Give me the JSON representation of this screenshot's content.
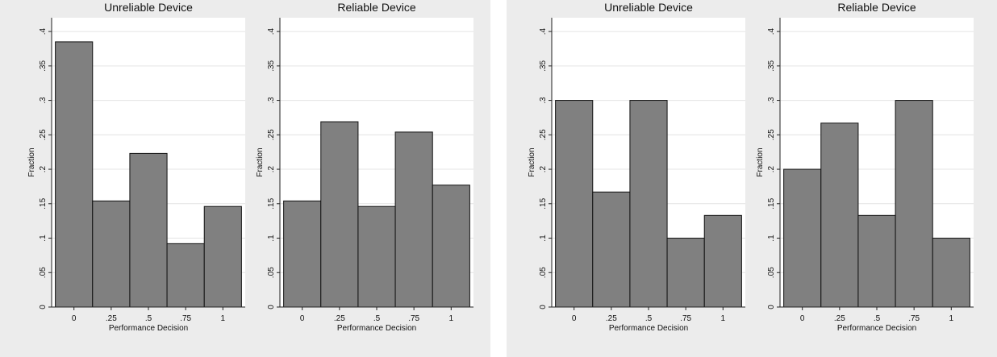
{
  "chart_data": [
    {
      "type": "bar",
      "title": "Unreliable Device",
      "xlabel": "Performance Decision",
      "ylabel": "Fraction",
      "categories": [
        "0",
        ".25",
        ".5",
        ".75",
        "1"
      ],
      "x": [
        0,
        0.25,
        0.5,
        0.75,
        1
      ],
      "values": [
        0.385,
        0.154,
        0.223,
        0.092,
        0.146
      ],
      "yticks": [
        "0",
        ".05",
        ".1",
        ".15",
        ".2",
        ".25",
        ".3",
        ".35",
        ".4"
      ],
      "ylim": [
        0,
        0.42
      ],
      "xlim": [
        -0.15,
        1.15
      ],
      "grid": true,
      "bar_color": "#808080"
    },
    {
      "type": "bar",
      "title": "Reliable Device",
      "xlabel": "Performance Decision",
      "ylabel": "Fraction",
      "categories": [
        "0",
        ".25",
        ".5",
        ".75",
        "1"
      ],
      "x": [
        0,
        0.25,
        0.5,
        0.75,
        1
      ],
      "values": [
        0.154,
        0.269,
        0.146,
        0.254,
        0.177
      ],
      "yticks": [
        "0",
        ".05",
        ".1",
        ".15",
        ".2",
        ".25",
        ".3",
        ".35",
        ".4"
      ],
      "ylim": [
        0,
        0.42
      ],
      "xlim": [
        -0.15,
        1.15
      ],
      "grid": true,
      "bar_color": "#808080"
    },
    {
      "type": "bar",
      "title": "Unreliable Device",
      "xlabel": "Performance Decision",
      "ylabel": "Fraction",
      "categories": [
        "0",
        ".25",
        ".5",
        ".75",
        "1"
      ],
      "x": [
        0,
        0.25,
        0.5,
        0.75,
        1
      ],
      "values": [
        0.3,
        0.167,
        0.3,
        0.1,
        0.133
      ],
      "yticks": [
        "0",
        ".05",
        ".1",
        ".15",
        ".2",
        ".25",
        ".3",
        ".35",
        ".4"
      ],
      "ylim": [
        0,
        0.42
      ],
      "xlim": [
        -0.15,
        1.15
      ],
      "grid": true,
      "bar_color": "#808080"
    },
    {
      "type": "bar",
      "title": "Reliable Device",
      "xlabel": "Performance Decision",
      "ylabel": "Fraction",
      "categories": [
        "0",
        ".25",
        ".5",
        ".75",
        "1"
      ],
      "x": [
        0,
        0.25,
        0.5,
        0.75,
        1
      ],
      "values": [
        0.2,
        0.267,
        0.133,
        0.3,
        0.1
      ],
      "yticks": [
        "0",
        ".05",
        ".1",
        ".15",
        ".2",
        ".25",
        ".3",
        ".35",
        ".4"
      ],
      "ylim": [
        0,
        0.42
      ],
      "xlim": [
        -0.15,
        1.15
      ],
      "grid": true,
      "bar_color": "#808080"
    }
  ]
}
